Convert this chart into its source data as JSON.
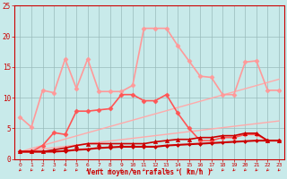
{
  "background_color": "#c8eaea",
  "grid_color": "#99bbbb",
  "xlabel": "Vent moyen/en rafales ( km/h )",
  "xlabel_color": "#cc0000",
  "tick_color": "#cc0000",
  "spine_color": "#cc0000",
  "xlim": [
    -0.5,
    23.5
  ],
  "ylim": [
    0,
    25
  ],
  "yticks": [
    0,
    5,
    10,
    15,
    20,
    25
  ],
  "xticks": [
    0,
    1,
    2,
    3,
    4,
    5,
    6,
    7,
    8,
    9,
    10,
    11,
    12,
    13,
    14,
    15,
    16,
    17,
    18,
    19,
    20,
    21,
    22,
    23
  ],
  "series": [
    {
      "x": [
        0,
        1,
        2,
        3,
        4,
        5,
        6,
        7,
        8,
        9,
        10,
        11,
        12,
        13,
        14,
        15,
        16,
        17,
        18,
        19,
        20,
        21,
        22,
        23
      ],
      "y": [
        6.8,
        5.2,
        11.2,
        10.8,
        16.3,
        11.5,
        16.3,
        11.0,
        11.0,
        11.0,
        12.0,
        21.3,
        21.3,
        21.3,
        18.5,
        16.0,
        13.5,
        13.3,
        10.5,
        10.5,
        15.8,
        16.0,
        11.2,
        11.2
      ],
      "color": "#ff9999",
      "marker": "D",
      "markersize": 2.5,
      "linewidth": 1.2
    },
    {
      "x": [
        0,
        1,
        2,
        3,
        4,
        5,
        6,
        7,
        8,
        9,
        10,
        11,
        12,
        13,
        14,
        15,
        16,
        17,
        18,
        19,
        20,
        21,
        22,
        23
      ],
      "y": [
        1.2,
        1.2,
        2.2,
        4.3,
        4.0,
        7.8,
        7.8,
        8.0,
        8.2,
        10.5,
        10.5,
        9.5,
        9.5,
        10.5,
        7.5,
        5.0,
        3.0,
        3.0,
        3.5,
        3.5,
        4.0,
        4.0,
        3.0,
        3.0
      ],
      "color": "#ff5555",
      "marker": "D",
      "markersize": 2.5,
      "linewidth": 1.2
    },
    {
      "x": [
        0,
        23
      ],
      "y": [
        1.2,
        13.0
      ],
      "color": "#ffaaaa",
      "marker": null,
      "markersize": 0,
      "linewidth": 1.0
    },
    {
      "x": [
        0,
        23
      ],
      "y": [
        1.2,
        6.2
      ],
      "color": "#ffaaaa",
      "marker": null,
      "markersize": 0,
      "linewidth": 1.0
    },
    {
      "x": [
        0,
        1,
        2,
        3,
        4,
        5,
        6,
        7,
        8,
        9,
        10,
        11,
        12,
        13,
        14,
        15,
        16,
        17,
        18,
        19,
        20,
        21,
        22,
        23
      ],
      "y": [
        1.2,
        1.2,
        1.2,
        1.5,
        1.8,
        2.2,
        2.5,
        2.5,
        2.5,
        2.5,
        2.5,
        2.5,
        2.8,
        3.0,
        3.2,
        3.2,
        3.5,
        3.5,
        3.8,
        3.8,
        4.2,
        4.2,
        3.0,
        3.0
      ],
      "color": "#cc0000",
      "marker": "^",
      "markersize": 3,
      "linewidth": 1.2
    },
    {
      "x": [
        0,
        1,
        2,
        3,
        4,
        5,
        6,
        7,
        8,
        9,
        10,
        11,
        12,
        13,
        14,
        15,
        16,
        17,
        18,
        19,
        20,
        21,
        22,
        23
      ],
      "y": [
        1.2,
        1.2,
        1.2,
        1.2,
        1.3,
        1.5,
        1.6,
        1.8,
        1.9,
        2.0,
        2.0,
        2.0,
        2.0,
        2.2,
        2.3,
        2.4,
        2.5,
        2.6,
        2.7,
        2.8,
        2.9,
        3.0,
        3.0,
        3.0
      ],
      "color": "#cc0000",
      "marker": "D",
      "markersize": 2,
      "linewidth": 1.5
    }
  ]
}
